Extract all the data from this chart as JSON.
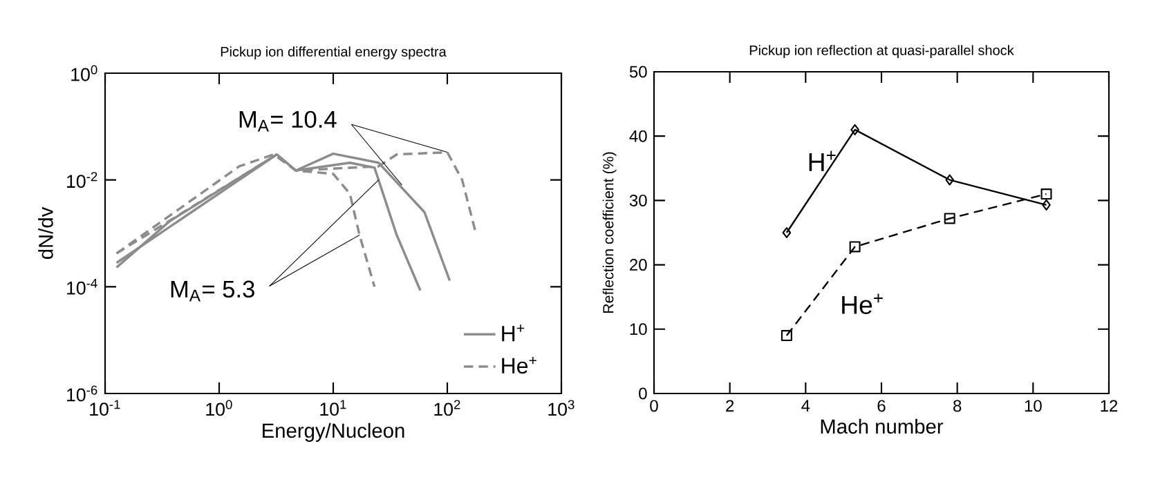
{
  "chart_data": [
    {
      "type": "line",
      "title": "Pickup ion differential energy spectra",
      "xlabel": "Energy/Nucleon",
      "ylabel": "dN/dv",
      "log": "xy",
      "xlim": [
        0.1,
        1000
      ],
      "ylim": [
        1e-06,
        1
      ],
      "xticks": [
        {
          "value": 0.1,
          "label": "10$^{-1}$"
        },
        {
          "value": 1,
          "label": "10$^{0}$"
        },
        {
          "value": 10,
          "label": "10$^{1}$"
        },
        {
          "value": 100,
          "label": "10$^{2}$"
        },
        {
          "value": 1000,
          "label": "10$^{3}$"
        }
      ],
      "yticks": [
        {
          "value": 1e-06,
          "label": "10$^{-6}$"
        },
        {
          "value": 0.0001,
          "label": "10$^{-4}$"
        },
        {
          "value": 0.01,
          "label": "10$^{-2}$"
        },
        {
          "value": 1,
          "label": "10$^{0}$"
        }
      ],
      "legend": "bottom right",
      "annotations": [
        {
          "text": "M$_{A}$= 10.4",
          "x": 40,
          "y": 0.008
        },
        {
          "text": "M$_{A}$= 5.3",
          "x": 25,
          "y": 0.01
        }
      ],
      "series": [
        {
          "name": "H$^{+}$",
          "color": "#8c8c8c",
          "line_style": "solid",
          "x": [
            0.126,
            0.37,
            3.2,
            4.7,
            14,
            23,
            36,
            58
          ],
          "values": [
            0.00023,
            0.0017,
            0.03,
            0.015,
            0.021,
            0.017,
            0.00093,
            8.5e-05
          ]
        },
        {
          "color": "#8c8c8c",
          "line_style": "solid",
          "x": [
            0.126,
            3.2,
            4.7,
            10,
            25,
            63,
            105
          ],
          "values": [
            0.00028,
            0.03,
            0.015,
            0.031,
            0.021,
            0.0025,
            0.00013
          ]
        },
        {
          "name": "He$^{+}$",
          "color": "#8c8c8c",
          "line_style": "dashed",
          "x": [
            0.126,
            1.5,
            3.0,
            4.7,
            10,
            14,
            17,
            23
          ],
          "values": [
            0.00042,
            0.018,
            0.03,
            0.015,
            0.013,
            0.0055,
            0.00093,
            0.0001
          ]
        },
        {
          "color": "#8c8c8c",
          "line_style": "dashed",
          "x": [
            0.126,
            3.2,
            4.7,
            25,
            36,
            100,
            135,
            178
          ],
          "values": [
            0.00042,
            0.03,
            0.015,
            0.018,
            0.03,
            0.033,
            0.01,
            0.001
          ]
        }
      ]
    },
    {
      "type": "line",
      "title": "Pickup ion reflection at quasi-parallel shock",
      "xlabel": "Mach number",
      "ylabel": "Reflection coefficient  (%)",
      "xlim": [
        0,
        12
      ],
      "ylim": [
        0,
        50
      ],
      "xticks": [
        0,
        2,
        4,
        6,
        8,
        10,
        12
      ],
      "yticks": [
        0,
        10,
        20,
        30,
        40,
        50
      ],
      "x": [
        3.5,
        5.3,
        7.8,
        10.35
      ],
      "legend": false,
      "series": [
        {
          "name": "H$^{+}$",
          "color": "#000000",
          "marker": "diamond",
          "line_style": "solid",
          "values": [
            25,
            41,
            33.2,
            29.3
          ]
        },
        {
          "name": "He$^{+}$",
          "color": "#000000",
          "marker": "square",
          "line_style": "dashed",
          "values": [
            9,
            22.8,
            27.2,
            31
          ]
        }
      ]
    }
  ]
}
